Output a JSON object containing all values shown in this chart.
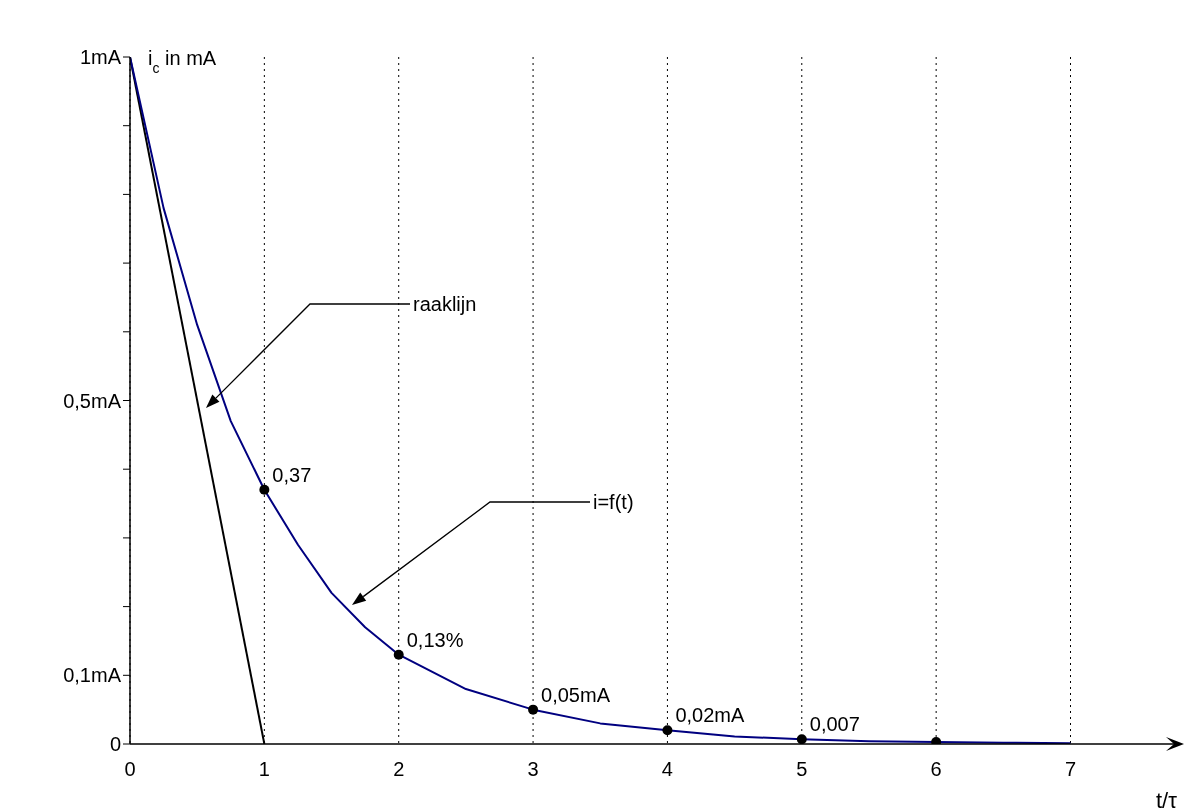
{
  "chart_data": {
    "type": "line",
    "xlabel": "t/τ",
    "ylabel": "i$_{c}$ in mA",
    "xlim": [
      0,
      7.8
    ],
    "xticks": [
      0,
      1,
      2,
      3,
      4,
      5,
      6,
      7
    ],
    "ylim": [
      0,
      1
    ],
    "yticks": [
      0,
      {
        "value": 0.1,
        "label": "0,1mA"
      },
      {
        "value": 0.2,
        "label": null
      },
      {
        "value": 0.3,
        "label": null
      },
      {
        "value": 0.4,
        "label": null
      },
      {
        "value": 0.5,
        "label": "0,5mA"
      },
      {
        "value": 0.6,
        "label": null
      },
      {
        "value": 0.7,
        "label": null
      },
      {
        "value": 0.8,
        "label": null
      },
      {
        "value": 0.9,
        "label": null
      },
      {
        "value": 1,
        "label": "1mA"
      }
    ],
    "grid": "x",
    "marker": "none",
    "line_style": "solid",
    "annotations": [
      "raaklijn",
      "i=f(t)"
    ],
    "series": [
      {
        "color": "#000000",
        "x": [
          0,
          1
        ],
        "values": [
          1,
          0
        ]
      },
      {
        "color": "#000080",
        "x": [
          0,
          0.25,
          0.5,
          0.75,
          1,
          1.25,
          1.5,
          1.75,
          2,
          2.5,
          3,
          3.5,
          4,
          4.5,
          5,
          5.5,
          6,
          6.5,
          7
        ],
        "values": [
          1,
          0.78,
          0.61,
          0.47,
          0.37,
          0.29,
          0.22,
          0.17,
          0.13,
          0.08,
          0.05,
          0.03,
          0.02,
          0.011,
          0.007,
          0.004,
          0.003,
          0.002,
          0.001
        ]
      },
      {
        "type": "scatter",
        "color": "#000000",
        "marker": "circle",
        "x": [
          1,
          2,
          3,
          4,
          5,
          6
        ],
        "values": [
          0.37,
          0.13,
          0.05,
          0.02,
          0.007,
          0.003
        ],
        "value_labels": [
          "0,37",
          "0,13%",
          "0,05mA",
          "0,02mA",
          "0,007",
          null
        ]
      }
    ]
  }
}
